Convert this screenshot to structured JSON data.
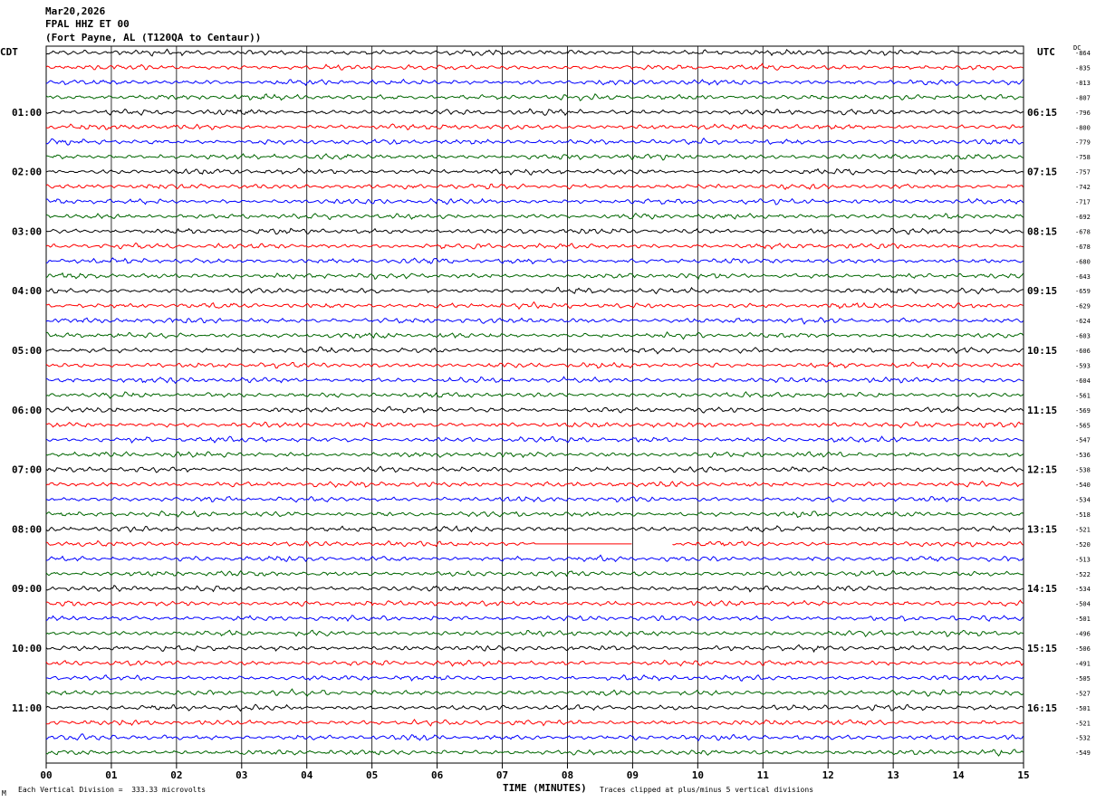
{
  "header": {
    "date": "Mar20,2026",
    "station": "FPAL HHZ ET 00",
    "location": "(Fort Payne, AL (T120QA to Centaur))"
  },
  "left_timezone": "CDT",
  "right_timezone": "UTC",
  "dc_header": "DC",
  "footer": {
    "scale_note": "Each Vertical Division =  333.33 microvolts",
    "clip_note": "Traces clipped at plus/minus 5 vertical divisions",
    "corner_mark": "M"
  },
  "colors": {
    "cycle": [
      "#000000",
      "#ff0000",
      "#0000ff",
      "#006600"
    ],
    "grid": "#000000"
  },
  "chart_data": {
    "type": "line",
    "title": "FPAL HHZ ET 00",
    "xlabel": "TIME (MINUTES)",
    "ylabel": "",
    "xlim": [
      0,
      15
    ],
    "x_ticks": [
      "00",
      "01",
      "02",
      "03",
      "04",
      "05",
      "06",
      "07",
      "08",
      "09",
      "10",
      "11",
      "12",
      "13",
      "14",
      "15"
    ],
    "left_hour_labels": [
      "01:00",
      "02:00",
      "03:00",
      "04:00",
      "05:00",
      "06:00",
      "07:00",
      "08:00",
      "09:00",
      "10:00",
      "11:00"
    ],
    "right_hour_labels": [
      "06:15",
      "07:15",
      "08:15",
      "09:15",
      "10:15",
      "11:15",
      "12:15",
      "13:15",
      "14:15",
      "15:15",
      "16:15"
    ],
    "traces_per_hour": 4,
    "minutes_per_trace": 15,
    "trace_dc_offsets": [
      -864,
      -835,
      -813,
      -807,
      -796,
      -800,
      -779,
      -758,
      -757,
      -742,
      -717,
      -692,
      -678,
      -678,
      -680,
      -643,
      -659,
      -629,
      -624,
      -603,
      -606,
      -593,
      -604,
      -561,
      -569,
      -565,
      -547,
      -536,
      -538,
      -540,
      -534,
      -518,
      -521,
      -520,
      -513,
      -522,
      -534,
      -504,
      -501,
      -496,
      -506,
      -491,
      -505,
      -527,
      -501,
      -521,
      -532,
      -549
    ],
    "data_gaps": [
      {
        "trace_index": 33,
        "flat_from_min": 7.5,
        "flat_to_min": 9.0,
        "missing_from_min": 9.0,
        "missing_to_min": 9.6
      }
    ],
    "grid": true
  }
}
